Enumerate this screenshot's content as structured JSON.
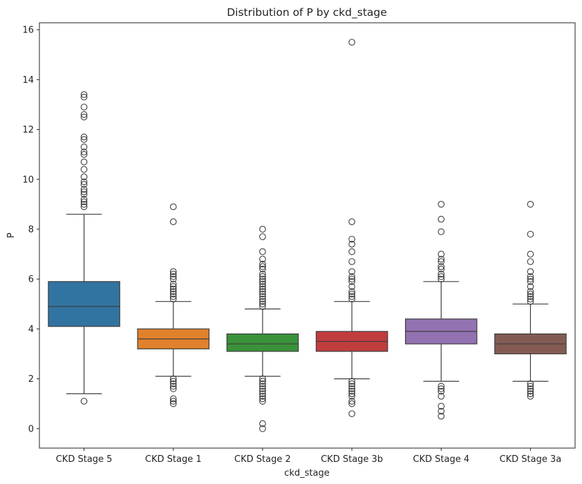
{
  "chart_data": {
    "type": "box",
    "title": "Distribution of P by ckd_stage",
    "xlabel": "ckd_stage",
    "ylabel": "P",
    "ylim": [
      -0.78,
      16.28
    ],
    "yticks": [
      0,
      2,
      4,
      6,
      8,
      10,
      12,
      14,
      16
    ],
    "grid": false,
    "legend": "none",
    "categories": [
      "CKD Stage 5",
      "CKD Stage 1",
      "CKD Stage 2",
      "CKD Stage 3b",
      "CKD Stage 4",
      "CKD Stage 3a"
    ],
    "colors": [
      "#3274a1",
      "#e1812c",
      "#3a923a",
      "#c03d3e",
      "#9372b2",
      "#845b53"
    ],
    "boxes": [
      {
        "category": "CKD Stage 5",
        "whisker_low": 1.4,
        "q1": 4.1,
        "median": 4.9,
        "q3": 5.9,
        "whisker_high": 8.6,
        "outliers": [
          1.1,
          8.9,
          9.0,
          9.1,
          9.2,
          9.4,
          9.5,
          9.6,
          9.8,
          9.9,
          10.1,
          10.4,
          10.7,
          11.0,
          11.1,
          11.3,
          11.6,
          11.7,
          12.5,
          12.6,
          12.9,
          13.3,
          13.4
        ]
      },
      {
        "category": "CKD Stage 1",
        "whisker_low": 2.1,
        "q1": 3.2,
        "median": 3.6,
        "q3": 4.0,
        "whisker_high": 5.1,
        "outliers": [
          1.0,
          1.1,
          1.2,
          1.6,
          1.7,
          1.8,
          1.9,
          2.0,
          5.2,
          5.3,
          5.4,
          5.5,
          5.6,
          5.7,
          5.8,
          6.0,
          6.1,
          6.2,
          6.3,
          8.3,
          8.9
        ]
      },
      {
        "category": "CKD Stage 2",
        "whisker_low": 2.1,
        "q1": 3.1,
        "median": 3.4,
        "q3": 3.8,
        "whisker_high": 4.8,
        "outliers": [
          0.0,
          0.2,
          1.1,
          1.2,
          1.3,
          1.4,
          1.5,
          1.6,
          1.7,
          1.8,
          1.9,
          2.0,
          4.9,
          5.0,
          5.1,
          5.2,
          5.3,
          5.4,
          5.5,
          5.6,
          5.7,
          5.8,
          5.9,
          6.0,
          6.1,
          6.2,
          6.4,
          6.5,
          6.6,
          6.8,
          7.1,
          7.7,
          8.0
        ]
      },
      {
        "category": "CKD Stage 3b",
        "whisker_low": 2.0,
        "q1": 3.1,
        "median": 3.5,
        "q3": 3.9,
        "whisker_high": 5.1,
        "outliers": [
          0.6,
          1.0,
          1.1,
          1.3,
          1.4,
          1.5,
          1.6,
          1.7,
          1.8,
          1.9,
          5.2,
          5.3,
          5.4,
          5.5,
          5.7,
          5.9,
          6.0,
          6.1,
          6.3,
          6.7,
          7.1,
          7.4,
          7.6,
          8.3,
          15.5
        ]
      },
      {
        "category": "CKD Stage 4",
        "whisker_low": 1.9,
        "q1": 3.4,
        "median": 3.9,
        "q3": 4.4,
        "whisker_high": 5.9,
        "outliers": [
          0.5,
          0.7,
          0.9,
          1.3,
          1.5,
          1.6,
          1.7,
          6.0,
          6.1,
          6.2,
          6.4,
          6.5,
          6.7,
          6.8,
          7.0,
          7.9,
          8.4,
          9.0
        ]
      },
      {
        "category": "CKD Stage 3a",
        "whisker_low": 1.9,
        "q1": 3.0,
        "median": 3.4,
        "q3": 3.8,
        "whisker_high": 5.0,
        "outliers": [
          1.3,
          1.4,
          1.5,
          1.6,
          1.7,
          1.8,
          5.1,
          5.2,
          5.3,
          5.4,
          5.5,
          5.7,
          5.9,
          6.0,
          6.1,
          6.3,
          6.7,
          7.0,
          7.8,
          9.0
        ]
      }
    ]
  }
}
